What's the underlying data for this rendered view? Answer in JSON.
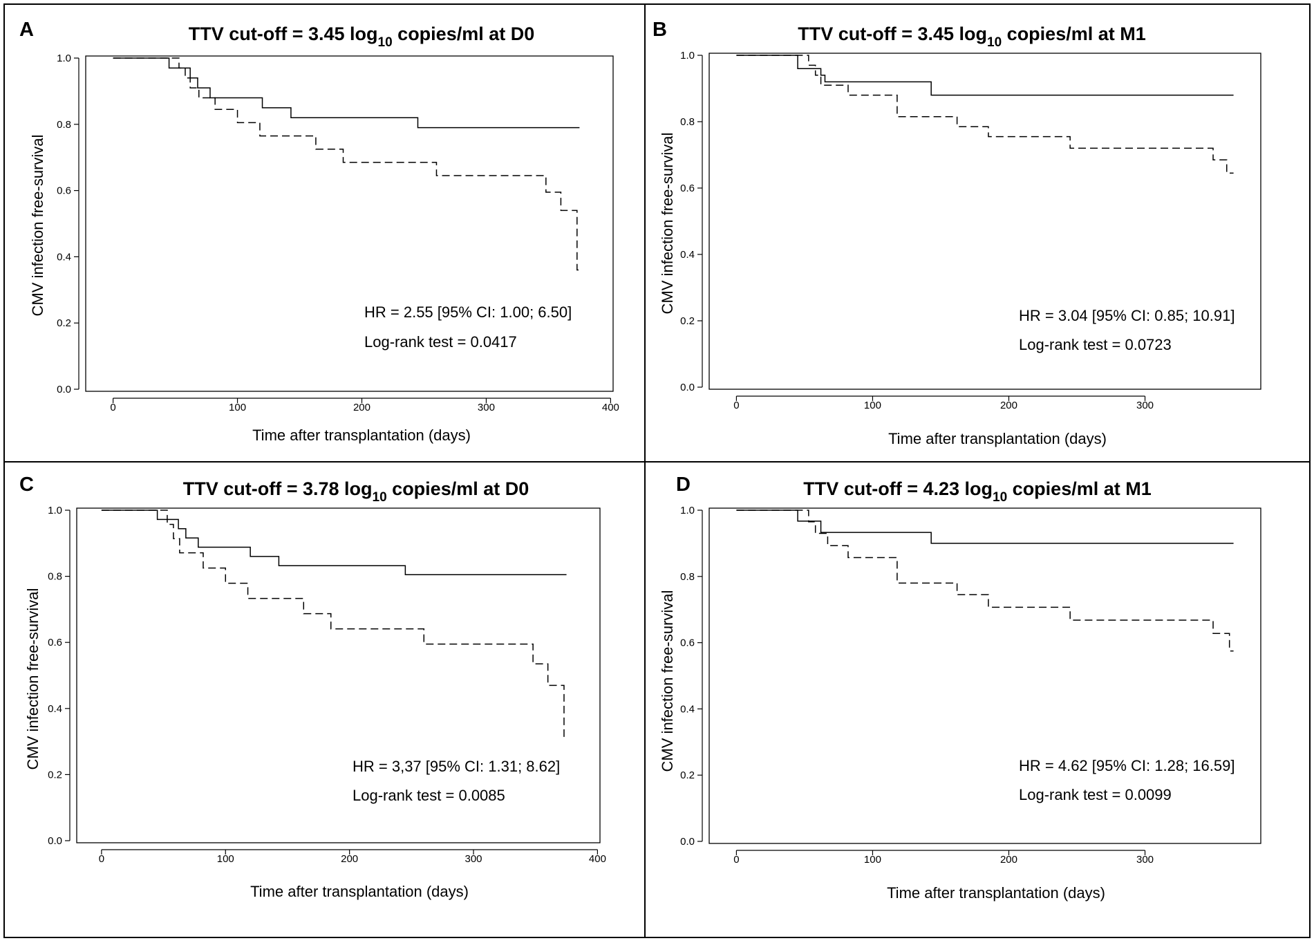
{
  "figure": {
    "background": "#ffffff",
    "line_color": "#000000"
  },
  "chart_data": [
    {
      "panel": "A",
      "type": "line",
      "title": "TTV cut-off = 3.45 log10 copies/ml at D0",
      "title_parts": {
        "pre": "TTV cut-off = 3.45 log",
        "sub": "10",
        "post": " copies/ml at D0"
      },
      "xlabel": "Time after transplantation (days)",
      "ylabel": "CMV infection free-survival",
      "xlim": [
        -22,
        402
      ],
      "ylim": [
        0,
        1
      ],
      "xticks": [
        0,
        100,
        200,
        300,
        400
      ],
      "yticks": [
        "0.0",
        "0.2",
        "0.4",
        "0.6",
        "0.8",
        "1.0"
      ],
      "annotations": {
        "hr": "HR = 2.55 [95% CI: 1.00; 6.50]",
        "logrank": "Log-rank test = 0.0417"
      },
      "series": [
        {
          "name": "solid",
          "style": "solid",
          "x": [
            0,
            45,
            62,
            68,
            78,
            120,
            143,
            245,
            375
          ],
          "y": [
            1.0,
            0.97,
            0.94,
            0.91,
            0.88,
            0.85,
            0.82,
            0.79,
            0.79
          ]
        },
        {
          "name": "dashed",
          "style": "dashed",
          "x": [
            0,
            53,
            58,
            62,
            69,
            82,
            100,
            118,
            163,
            185,
            260,
            348,
            360,
            373,
            375
          ],
          "y": [
            1.0,
            0.97,
            0.94,
            0.91,
            0.88,
            0.845,
            0.805,
            0.765,
            0.725,
            0.685,
            0.645,
            0.595,
            0.54,
            0.36,
            0.36
          ]
        }
      ]
    },
    {
      "panel": "B",
      "type": "line",
      "title": "TTV cut-off = 3.45 log10 copies/ml at M1",
      "title_parts": {
        "pre": "TTV cut-off = 3.45 log",
        "sub": "10",
        "post": " copies/ml at M1"
      },
      "xlabel": "Time after transplantation (days)",
      "ylabel": "CMV infection free-survival",
      "xlim": [
        -20,
        385
      ],
      "ylim": [
        0,
        1
      ],
      "xticks": [
        0,
        100,
        200,
        300
      ],
      "yticks": [
        "0.0",
        "0.2",
        "0.4",
        "0.6",
        "0.8",
        "1.0"
      ],
      "annotations": {
        "hr": "HR = 3.04 [95% CI: 0.85; 10.91]",
        "logrank": "Log-rank test = 0.0723"
      },
      "series": [
        {
          "name": "solid",
          "style": "solid",
          "x": [
            0,
            45,
            62,
            65,
            143,
            365
          ],
          "y": [
            1.0,
            0.96,
            0.94,
            0.92,
            0.88,
            0.88
          ]
        },
        {
          "name": "dashed",
          "style": "dashed",
          "x": [
            0,
            53,
            58,
            62,
            67,
            82,
            118,
            162,
            185,
            245,
            350,
            360,
            365
          ],
          "y": [
            1.0,
            0.97,
            0.94,
            0.91,
            0.91,
            0.88,
            0.815,
            0.785,
            0.755,
            0.72,
            0.685,
            0.645,
            0.645
          ]
        }
      ]
    },
    {
      "panel": "C",
      "type": "line",
      "title": "TTV cut-off = 3.78 log10 copies/ml at D0",
      "title_parts": {
        "pre": "TTV cut-off = 3.78 log",
        "sub": "10",
        "post": " copies/ml at D0"
      },
      "xlabel": "Time after transplantation (days)",
      "ylabel": "CMV infection free-survival",
      "xlim": [
        -20,
        402
      ],
      "ylim": [
        0,
        1
      ],
      "xticks": [
        0,
        100,
        200,
        300,
        400
      ],
      "yticks": [
        "0.0",
        "0.2",
        "0.4",
        "0.6",
        "0.8",
        "1.0"
      ],
      "annotations": {
        "hr": "HR = 3,37 [95% CI: 1.31; 8.62]",
        "logrank": "Log-rank test = 0.0085"
      },
      "series": [
        {
          "name": "solid",
          "style": "solid",
          "x": [
            0,
            45,
            62,
            68,
            78,
            120,
            143,
            245,
            375
          ],
          "y": [
            1.0,
            0.972,
            0.944,
            0.916,
            0.888,
            0.86,
            0.832,
            0.805,
            0.805
          ]
        },
        {
          "name": "dashed",
          "style": "dashed",
          "x": [
            0,
            53,
            58,
            63,
            82,
            100,
            118,
            163,
            185,
            260,
            348,
            360,
            373,
            375
          ],
          "y": [
            1.0,
            0.957,
            0.914,
            0.871,
            0.825,
            0.779,
            0.733,
            0.687,
            0.641,
            0.595,
            0.535,
            0.47,
            0.31,
            0.31
          ]
        }
      ]
    },
    {
      "panel": "D",
      "type": "line",
      "title": "TTV cut-off = 4.23 log10 copies/ml at M1",
      "title_parts": {
        "pre": "TTV cut-off = 4.23 log",
        "sub": "10",
        "post": " copies/ml at M1"
      },
      "xlabel": "Time after transplantation (days)",
      "ylabel": "CMV infection free-survival",
      "xlim": [
        -20,
        385
      ],
      "ylim": [
        0,
        1
      ],
      "xticks": [
        0,
        100,
        200,
        300
      ],
      "yticks": [
        "0.0",
        "0.2",
        "0.4",
        "0.6",
        "0.8",
        "1.0"
      ],
      "annotations": {
        "hr": "HR = 4.62 [95% CI: 1.28; 16.59]",
        "logrank": "Log-rank test = 0.0099"
      },
      "series": [
        {
          "name": "solid",
          "style": "solid",
          "x": [
            0,
            45,
            62,
            143,
            365
          ],
          "y": [
            1.0,
            0.967,
            0.933,
            0.9,
            0.9
          ]
        },
        {
          "name": "dashed",
          "style": "dashed",
          "x": [
            0,
            53,
            58,
            63,
            67,
            82,
            118,
            162,
            185,
            245,
            350,
            362,
            365
          ],
          "y": [
            1.0,
            0.965,
            0.93,
            0.93,
            0.893,
            0.857,
            0.78,
            0.745,
            0.707,
            0.668,
            0.628,
            0.575,
            0.575
          ]
        }
      ]
    }
  ]
}
